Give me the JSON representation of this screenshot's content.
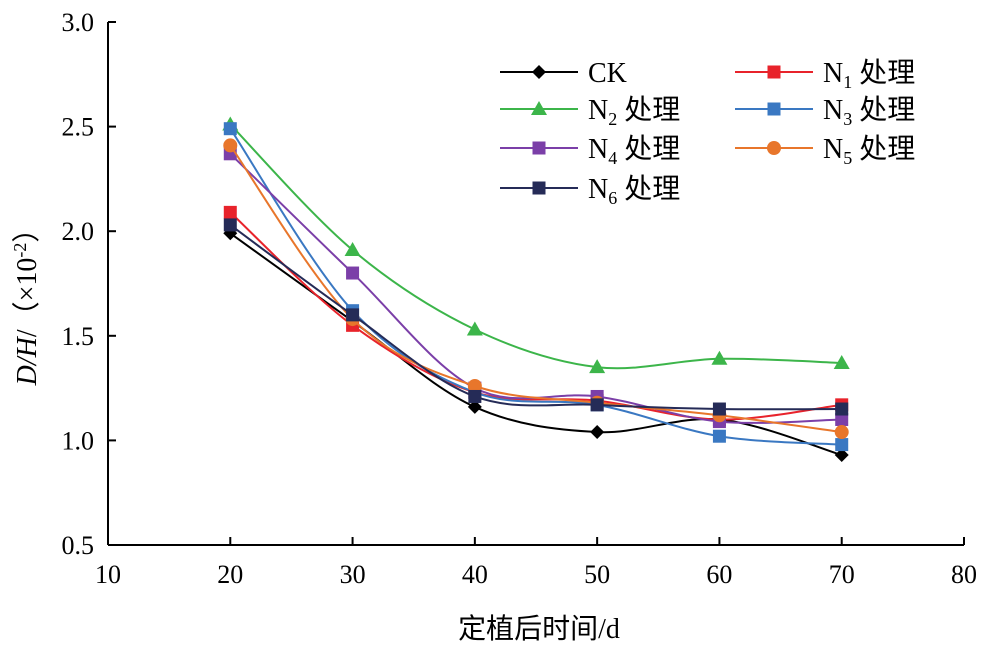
{
  "chart_data": {
    "type": "line",
    "xlabel": "定植后时间/d",
    "ylabel": "D/H/（×10⁻²）",
    "ylabel_parts": {
      "italic": "D/H",
      "rest": "/（×10",
      "sup": "-2",
      "close": "）"
    },
    "xlim": [
      10,
      80
    ],
    "ylim": [
      0.5,
      3.0
    ],
    "xticks": [
      "10",
      "20",
      "30",
      "40",
      "50",
      "60",
      "70",
      "80"
    ],
    "yticks": [
      "0.5",
      "1.0",
      "1.5",
      "2.0",
      "2.5",
      "3.0"
    ],
    "x": [
      20,
      30,
      40,
      50,
      60,
      70
    ],
    "legend_position": "top-right",
    "series": [
      {
        "name": "CK",
        "label_main": "CK",
        "label_sub": "",
        "label_suffix": "",
        "color": "#000000",
        "marker": "diamond",
        "values": [
          1.99,
          1.57,
          1.16,
          1.04,
          1.1,
          0.93
        ]
      },
      {
        "name": "N1 处理",
        "label_main": "N",
        "label_sub": "1",
        "label_suffix": " 处理",
        "color": "#e8232b",
        "marker": "square",
        "values": [
          2.09,
          1.55,
          1.23,
          1.19,
          1.1,
          1.17
        ]
      },
      {
        "name": "N2 处理",
        "label_main": "N",
        "label_sub": "2",
        "label_suffix": " 处理",
        "color": "#3cb54a",
        "marker": "triangle",
        "values": [
          2.51,
          1.91,
          1.53,
          1.35,
          1.39,
          1.37
        ]
      },
      {
        "name": "N3 处理",
        "label_main": "N",
        "label_sub": "3",
        "label_suffix": " 处理",
        "color": "#3a78c2",
        "marker": "square",
        "values": [
          2.49,
          1.62,
          1.23,
          1.17,
          1.02,
          0.98
        ]
      },
      {
        "name": "N4 处理",
        "label_main": "N",
        "label_sub": "4",
        "label_suffix": " 处理",
        "color": "#7b3fa8",
        "marker": "square",
        "values": [
          2.37,
          1.8,
          1.25,
          1.21,
          1.09,
          1.1
        ]
      },
      {
        "name": "N5 处理",
        "label_main": "N",
        "label_sub": "5",
        "label_suffix": " 处理",
        "color": "#e8762b",
        "marker": "circle",
        "values": [
          2.41,
          1.58,
          1.26,
          1.18,
          1.12,
          1.04
        ]
      },
      {
        "name": "N6 处理",
        "label_main": "N",
        "label_sub": "6",
        "label_suffix": " 处理",
        "color": "#252b57",
        "marker": "square",
        "values": [
          2.03,
          1.6,
          1.21,
          1.17,
          1.15,
          1.15
        ]
      }
    ]
  }
}
